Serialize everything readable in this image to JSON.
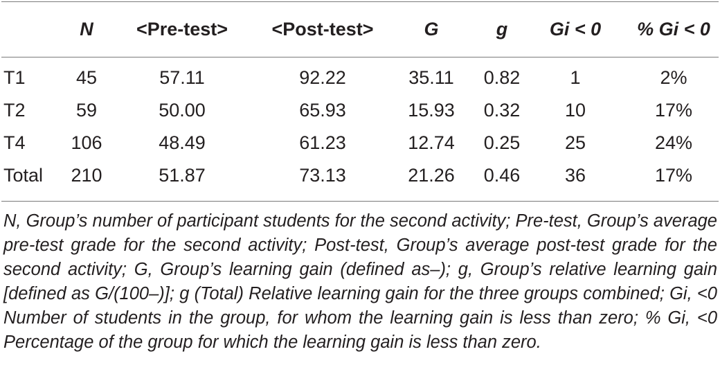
{
  "table": {
    "headers": {
      "n": "N",
      "pre": "<Pre-test>",
      "post": "<Post-test>",
      "G": "G",
      "g": "g",
      "gi_neg": "Gi < 0",
      "pct_gi_neg": "% Gi < 0"
    },
    "rows": [
      {
        "group": "T1",
        "n": "45",
        "pre": "57.11",
        "post": "92.22",
        "G": "35.11",
        "g": "0.82",
        "gi_neg": "1",
        "pct_gi_neg": "2%"
      },
      {
        "group": "T2",
        "n": "59",
        "pre": "50.00",
        "post": "65.93",
        "G": "15.93",
        "g": "0.32",
        "gi_neg": "10",
        "pct_gi_neg": "17%"
      },
      {
        "group": "T4",
        "n": "106",
        "pre": "48.49",
        "post": "61.23",
        "G": "12.74",
        "g": "0.25",
        "gi_neg": "25",
        "pct_gi_neg": "24%"
      },
      {
        "group": "Total",
        "n": "210",
        "pre": "51.87",
        "post": "73.13",
        "G": "21.26",
        "g": "0.46",
        "gi_neg": "36",
        "pct_gi_neg": "17%"
      }
    ]
  },
  "footnote": "N, Group’s number of participant students for the second activity; Pre-test, Group’s average pre-test grade for the second activity; Post-test, Group’s average post-test grade for the second activity; G, Group’s learning gain (defined as–); g, Group’s relative learning gain [defined as G/(100–)]; g (Total) Relative learning gain for the three groups combined; Gi, <0 Number of students in the group, for whom the learning gain is less than zero; % Gi, <0 Percentage of the group for which the learning gain is less than zero."
}
